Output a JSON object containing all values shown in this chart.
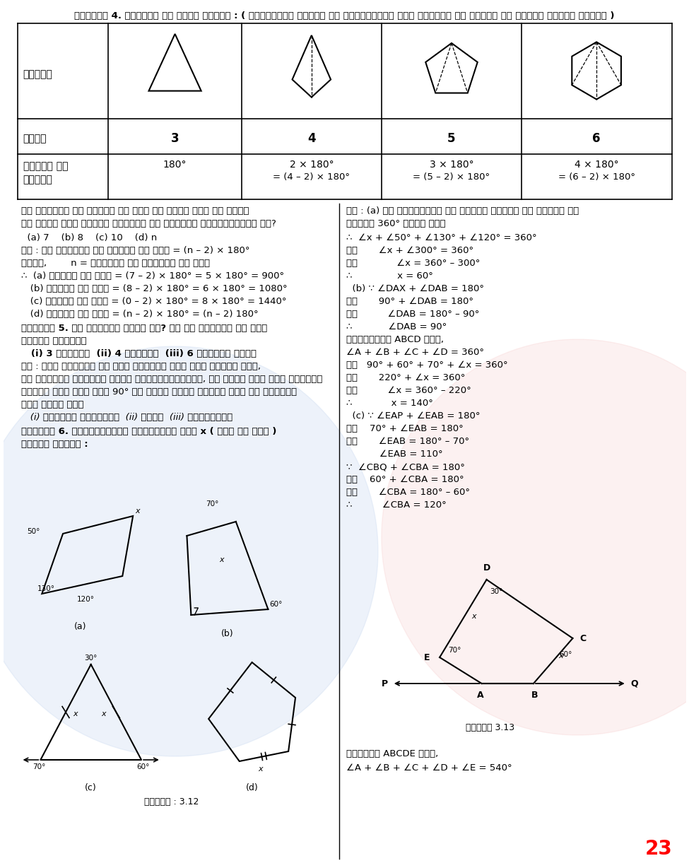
{
  "bg_color": "#ffffff",
  "page_num": "23",
  "title_top": "प्रश्न 4. तालिका की जाँच कीजिए : ( प्रत्येक आकृति को त्रिभुजों में बाँटिए और कोणों का योगफल ज्ञात कीजिए )",
  "table": {
    "sides": [
      "3",
      "4",
      "5",
      "6"
    ],
    "angle_line1": [
      "180°",
      "2 × 180°",
      "3 × 180°",
      "4 × 180°"
    ],
    "angle_line2": [
      "",
      "= (4 – 2) × 180°",
      "= (5 – 2) × 180°",
      "= (6 – 2) × 180°"
    ]
  },
  "watermark_color": "#c8d8f0",
  "accent_color": "#f5c0c0",
  "fig_caption_left": "आकृति : 3.12",
  "fig_caption_right": "आकृति 3.13",
  "bottom_right_text1": "पंचभुज ABCDE में,",
  "bottom_right_text2": "∠A + ∠B + ∠C + ∠D + ∠E = 540°"
}
